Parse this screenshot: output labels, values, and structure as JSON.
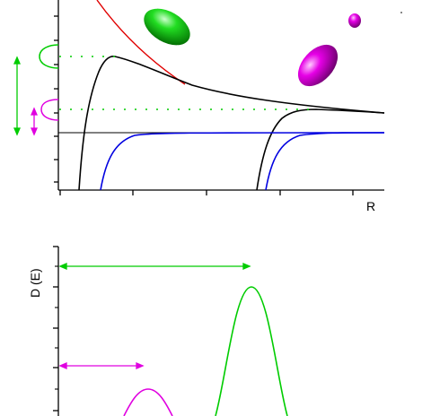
{
  "top_panel": {
    "x_axis_label": "R"
  },
  "bottom_panel": {
    "y_axis_label": "D (E)"
  },
  "colors": {
    "axis": "#000000",
    "dissociation_curve": "#e00000",
    "potential_curve": "#000000",
    "asymptote_curve": "#0000e0",
    "green_state": "#00cc00",
    "magenta_state": "#e000e0"
  },
  "shapes": {
    "green_ellipsoid": "green-ellipsoid",
    "magenta_ellipsoid": "magenta-ellipsoid",
    "small_sphere": "magenta-sphere"
  }
}
